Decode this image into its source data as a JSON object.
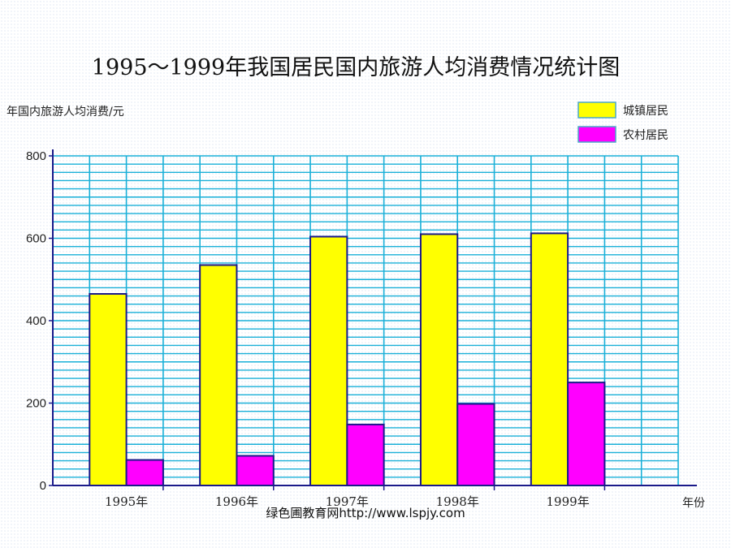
{
  "chart_data": {
    "type": "bar",
    "title": "1995～1999年我国居民国内旅游人均消费情况统计图",
    "ylabel": "年国内旅游人均消费/元",
    "xlabel": "年份",
    "ylim": [
      0,
      800
    ],
    "yticks": [
      0,
      200,
      400,
      600,
      800
    ],
    "categories": [
      "1995年",
      "1996年",
      "1997年",
      "1998年",
      "1999年"
    ],
    "series": [
      {
        "name": "城镇居民",
        "color": "#ffff00",
        "values": [
          465,
          535,
          604,
          610,
          612
        ]
      },
      {
        "name": "农村居民",
        "color": "#ff00ff",
        "values": [
          62,
          72,
          148,
          198,
          250
        ]
      }
    ],
    "grid": true,
    "legend": "top-right"
  },
  "watermark": "绿色圃教育网http://www.lspjy.com",
  "colors": {
    "grid": "#1ab0d8",
    "bar_outline": "#1a1a8a",
    "axis": "#1a1a8a"
  }
}
